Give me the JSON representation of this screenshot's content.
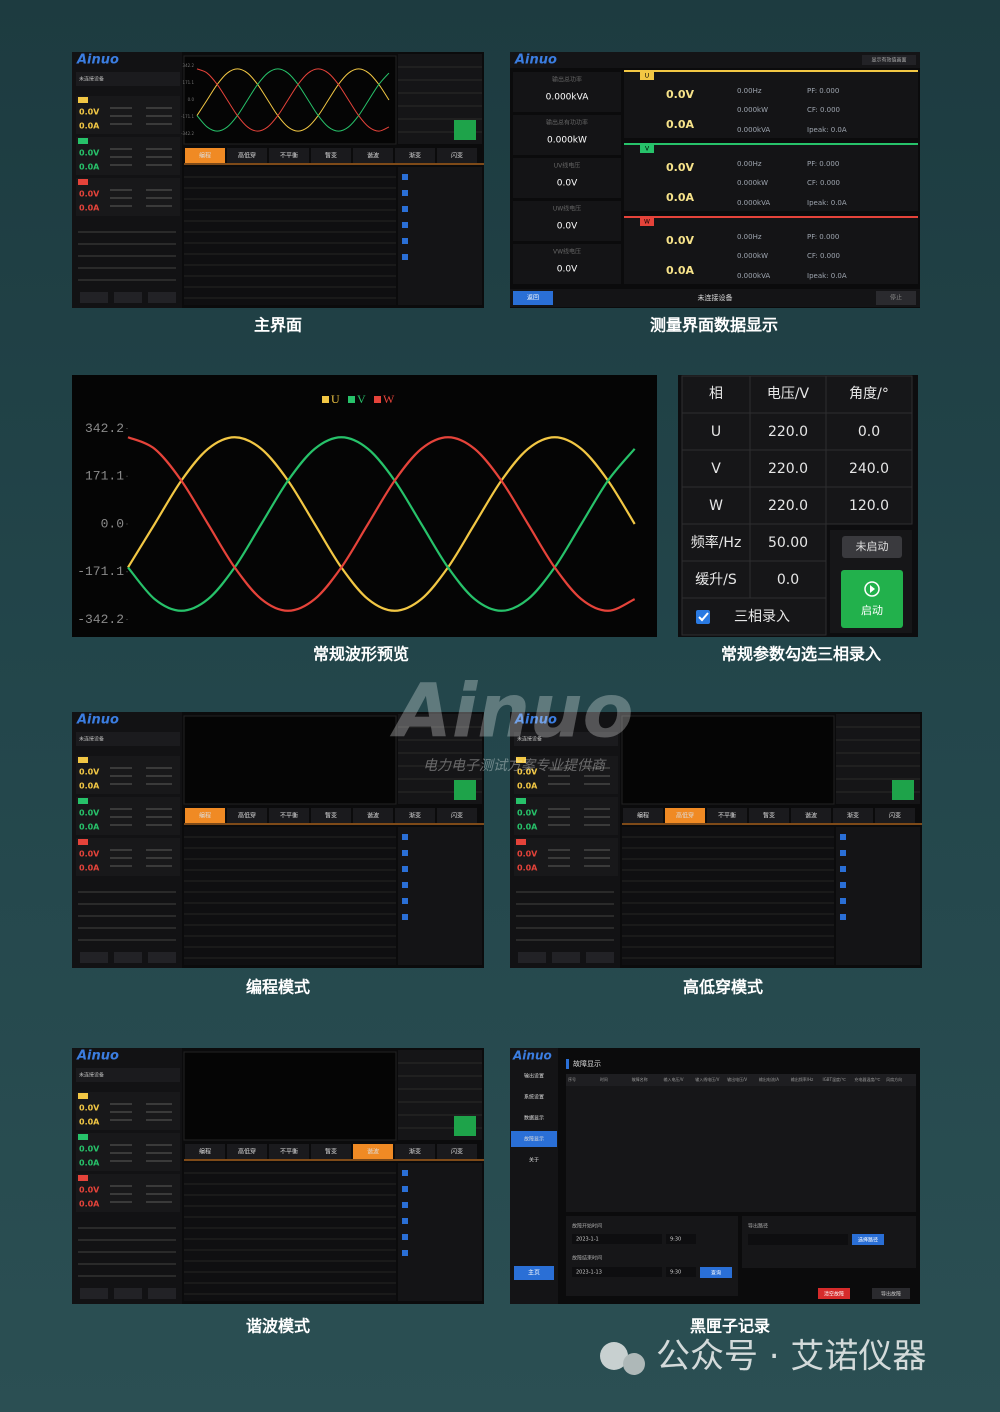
{
  "captions": [
    "主界面",
    "测量界面数据显示",
    "常规波形预览",
    "常规参数勾选三相录入",
    "编程模式",
    "高低穿模式",
    "谐波模式",
    "黑匣子记录"
  ],
  "thumbs": [
    {
      "logo": "Ainuo",
      "status": "未连接设备",
      "phases": [
        {
          "voltage": "0.0V",
          "current": "0.0A"
        },
        {
          "voltage": "0.0V",
          "current": "0.0A"
        },
        {
          "voltage": "0.0V",
          "current": "0.0A"
        }
      ],
      "tabs": [
        "编程",
        "高低穿",
        "不平衡",
        "暂变",
        "谐波",
        "渐变",
        "闪变"
      ],
      "active_tab": 0
    },
    {
      "logo": "Ainuo",
      "status": "未连接设备",
      "phases": [
        {
          "voltage": "0.0V",
          "current": "0.0A"
        },
        {
          "voltage": "0.0V",
          "current": "0.0A"
        },
        {
          "voltage": "0.0V",
          "current": "0.0A"
        }
      ],
      "tabs": [
        "编程",
        "高低穿",
        "不平衡",
        "暂变",
        "谐波",
        "渐变",
        "闪变"
      ],
      "active_tab": 0
    },
    {
      "logo": "Ainuo",
      "status": "未连接设备",
      "phases": [
        {
          "voltage": "0.0V",
          "current": "0.0A"
        },
        {
          "voltage": "0.0V",
          "current": "0.0A"
        },
        {
          "voltage": "0.0V",
          "current": "0.0A"
        }
      ],
      "tabs": [
        "编程",
        "高低穿",
        "不平衡",
        "暂变",
        "谐波",
        "渐变",
        "闪变"
      ],
      "active_tab": 1
    },
    {
      "logo": "Ainuo",
      "status": "未连接设备",
      "phases": [
        {
          "voltage": "0.0V",
          "current": "0.0A"
        },
        {
          "voltage": "0.0V",
          "current": "0.0A"
        },
        {
          "voltage": "0.0V",
          "current": "0.0A"
        }
      ],
      "tabs": [
        "编程",
        "高低穿",
        "不平衡",
        "暂变",
        "谐波",
        "渐变",
        "闪变"
      ],
      "active_tab": 4
    }
  ],
  "measure": {
    "logo": "Ainuo",
    "top_button": "显示有效值画面",
    "left": [
      {
        "label": "输出总功率",
        "value": "0.000kVA"
      },
      {
        "label": "输出总有功功率",
        "value": "0.000kW"
      },
      {
        "label": "UV线电压",
        "value": "0.0V"
      },
      {
        "label": "UW线电压",
        "value": "0.0V"
      },
      {
        "label": "VW线电压",
        "value": "0.0V"
      }
    ],
    "phases": [
      {
        "name": "U",
        "voltage": "0.0V",
        "current": "0.0A",
        "freq": "0.00Hz",
        "power": "0.000kW",
        "apparent": "0.000kVA",
        "pf": "PF: 0.000",
        "cf": "CF: 0.000",
        "ipeak": "Ipeak: 0.0A"
      },
      {
        "name": "V",
        "voltage": "0.0V",
        "current": "0.0A",
        "freq": "0.00Hz",
        "power": "0.000kW",
        "apparent": "0.000kVA",
        "pf": "PF: 0.000",
        "cf": "CF: 0.000",
        "ipeak": "Ipeak: 0.0A"
      },
      {
        "name": "W",
        "voltage": "0.0V",
        "current": "0.0A",
        "freq": "0.00Hz",
        "power": "0.000kW",
        "apparent": "0.000kVA",
        "pf": "PF: 0.000",
        "cf": "CF: 0.000",
        "ipeak": "Ipeak: 0.0A"
      }
    ],
    "back": "返回",
    "status": "未连接设备",
    "stop": "停止"
  },
  "chart_data": {
    "type": "line",
    "ylim": [
      -380,
      380
    ],
    "yticks": [
      342.2,
      171.1,
      {
        "value": 0,
        "label": "0.0"
      },
      -171.1,
      -342.2
    ],
    "grid": false,
    "series": [
      {
        "name": "U",
        "color": "#f2c744",
        "values": [
          -155.6,
          0,
          155.6,
          269.4,
          311.1,
          269.4,
          155.6,
          0,
          -155.6,
          -269.4,
          -311.1,
          -269.4,
          -155.6,
          0,
          155.6,
          269.4,
          311.1,
          269.4,
          155.6,
          0
        ]
      },
      {
        "name": "V",
        "color": "#27c26a",
        "values": [
          -155.6,
          -269.4,
          -311.1,
          -269.4,
          -155.6,
          0,
          155.6,
          269.4,
          311.1,
          269.4,
          155.6,
          0,
          -155.6,
          -269.4,
          -311.1,
          -269.4,
          -155.6,
          0,
          155.6,
          269.4
        ]
      },
      {
        "name": "W",
        "color": "#e5433a",
        "values": [
          311.1,
          269.4,
          155.6,
          0,
          -155.6,
          -269.4,
          -311.1,
          -269.4,
          -155.6,
          0,
          155.6,
          269.4,
          311.1,
          269.4,
          155.6,
          0,
          -155.6,
          -269.4,
          -311.1,
          -269.4
        ]
      }
    ]
  },
  "params": {
    "headers": [
      "相",
      "电压/V",
      "角度/°"
    ],
    "rows": [
      [
        "U",
        "220.0",
        "0.0"
      ],
      [
        "V",
        "220.0",
        "240.0"
      ],
      [
        "W",
        "220.0",
        "120.0"
      ]
    ],
    "freq": [
      "频率/Hz",
      "50.00"
    ],
    "ramp": [
      "缓升/S",
      "0.0"
    ],
    "three_phase": "三相录入",
    "state": "未启动",
    "start": "启动"
  },
  "blackbox": {
    "logo": "Ainuo",
    "menu": [
      "输出设置",
      "系统设置",
      "数据显示",
      "故障显示",
      "关于"
    ],
    "active_menu": 3,
    "title": "故障显示",
    "columns": [
      "序号",
      "时间",
      "故障名称",
      "输入电压/V",
      "输入线电压/V",
      "输出电压/V",
      "输出电流/A",
      "输出频率/Hz",
      "IGBT温度/℃",
      "充电器温度/℃",
      "风扇方向"
    ],
    "start_label": "故障开始时间",
    "start_date": "2023-1-1",
    "start_time": "9:30",
    "end_label": "故障结束时间",
    "end_date": "2023-1-13",
    "end_time": "9:30",
    "query": "查询",
    "path_label": "导出路径",
    "choose_path": "选择路径",
    "clear": "清空故障",
    "export": "导出故障",
    "home": "主页"
  },
  "watermark": {
    "logo": "Ainuo",
    "slogan": "电力电子测试方案专业提供商"
  },
  "footer": "公众号 · 艾诺仪器"
}
